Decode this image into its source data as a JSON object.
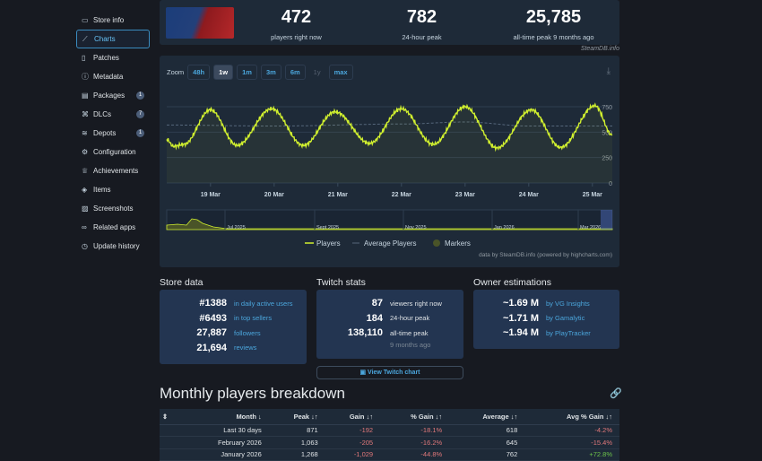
{
  "sidebar": {
    "items": [
      {
        "label": "Store info",
        "icon": "window-icon"
      },
      {
        "label": "Charts",
        "icon": "chart-icon",
        "active": true
      },
      {
        "label": "Patches",
        "icon": "patches-icon"
      },
      {
        "label": "Metadata",
        "icon": "info-icon"
      },
      {
        "label": "Packages",
        "icon": "package-icon",
        "badge": "1"
      },
      {
        "label": "DLCs",
        "icon": "puzzle-icon",
        "badge": "7"
      },
      {
        "label": "Depots",
        "icon": "depot-icon",
        "badge": "1"
      },
      {
        "label": "Configuration",
        "icon": "gear-icon"
      },
      {
        "label": "Achievements",
        "icon": "trophy-icon"
      },
      {
        "label": "Items",
        "icon": "items-icon"
      },
      {
        "label": "Screenshots",
        "icon": "image-icon"
      },
      {
        "label": "Related apps",
        "icon": "link-icon"
      },
      {
        "label": "Update history",
        "icon": "history-icon"
      }
    ]
  },
  "header": {
    "stats": [
      {
        "value": "472",
        "label": "players right now"
      },
      {
        "value": "782",
        "label": "24-hour peak"
      },
      {
        "value": "25,785",
        "label": "all-time peak 9 months ago"
      }
    ],
    "credit": "SteamDB.info"
  },
  "chart": {
    "zoom_label": "Zoom",
    "zoom_buttons": [
      "48h",
      "1w",
      "1m",
      "3m",
      "6m",
      "1y",
      "max"
    ],
    "zoom_selected": "1w",
    "credit": "data by SteamDB.info (powered by highcharts.com)",
    "legend": [
      "Players",
      "Average Players",
      "Markers"
    ],
    "navigator_labels": [
      "Jul 2025",
      "Sept 2025",
      "Nov 2025",
      "Jan 2026",
      "Mar 2026"
    ],
    "line_color": "#d1f02f"
  },
  "chart_data": {
    "type": "line",
    "ylim": [
      0,
      750
    ],
    "yticks": [
      0,
      250,
      500,
      750
    ],
    "xticks": [
      "19 Mar",
      "20 Mar",
      "21 Mar",
      "22 Mar",
      "23 Mar",
      "24 Mar",
      "25 Mar"
    ],
    "grid": true,
    "legend_position": "bottom",
    "series": [
      {
        "name": "Players",
        "points": [
          [
            "18 Mar 07:30",
            430
          ],
          [
            "18 Mar 10:00",
            360
          ],
          [
            "18 Mar 14:00",
            380
          ],
          [
            "19 Mar 00:00",
            720
          ],
          [
            "19 Mar 10:00",
            370
          ],
          [
            "19 Mar 23:00",
            730
          ],
          [
            "20 Mar 11:00",
            370
          ],
          [
            "20 Mar 23:00",
            700
          ],
          [
            "21 Mar 12:00",
            390
          ],
          [
            "22 Mar 00:00",
            730
          ],
          [
            "22 Mar 12:00",
            380
          ],
          [
            "23 Mar 00:00",
            750
          ],
          [
            "23 Mar 12:00",
            345
          ],
          [
            "24 Mar 01:00",
            720
          ],
          [
            "24 Mar 12:00",
            350
          ],
          [
            "25 Mar 01:00",
            760
          ],
          [
            "25 Mar 07:30",
            470
          ]
        ]
      },
      {
        "name": "Average Players",
        "points": [
          [
            "18 Mar 07:30",
            570
          ],
          [
            "20 Mar 00:00",
            560
          ],
          [
            "22 Mar 00:00",
            580
          ],
          [
            "23 Mar 00:00",
            600
          ],
          [
            "24 Mar 00:00",
            560
          ],
          [
            "25 Mar 07:30",
            560
          ]
        ]
      }
    ]
  },
  "store_data": {
    "title": "Store data",
    "rows": [
      {
        "value": "#1388",
        "label": "in daily active users"
      },
      {
        "value": "#6493",
        "label": "in top sellers"
      },
      {
        "value": "27,887",
        "label": "followers"
      },
      {
        "value": "21,694",
        "label": "reviews"
      }
    ]
  },
  "twitch": {
    "title": "Twitch stats",
    "rows": [
      {
        "value": "87",
        "label": "viewers right now"
      },
      {
        "value": "184",
        "label": "24-hour peak"
      },
      {
        "value": "138,110",
        "label": "all-time peak"
      }
    ],
    "sub": "9 months ago",
    "button": "View Twitch chart"
  },
  "owners": {
    "title": "Owner estimations",
    "rows": [
      {
        "value": "~1.69 M",
        "label": "by VG Insights"
      },
      {
        "value": "~1.71 M",
        "label": "by Gamalytic"
      },
      {
        "value": "~1.94 M",
        "label": "by PlayTracker"
      }
    ]
  },
  "monthly": {
    "title": "Monthly players breakdown",
    "headers": [
      "Month ↓",
      "Peak ↓↑",
      "Gain ↓↑",
      "% Gain ↓↑",
      "Average ↓↑",
      "Avg % Gain ↓↑"
    ],
    "rows": [
      [
        "Last 30 days",
        "871",
        "-192",
        "-18.1%",
        "618",
        "-4.2%"
      ],
      [
        "February 2026",
        "1,063",
        "-205",
        "-16.2%",
        "645",
        "-15.4%"
      ],
      [
        "January 2026",
        "1,268",
        "-1,029",
        "-44.8%",
        "762",
        "+72.8%"
      ]
    ]
  }
}
